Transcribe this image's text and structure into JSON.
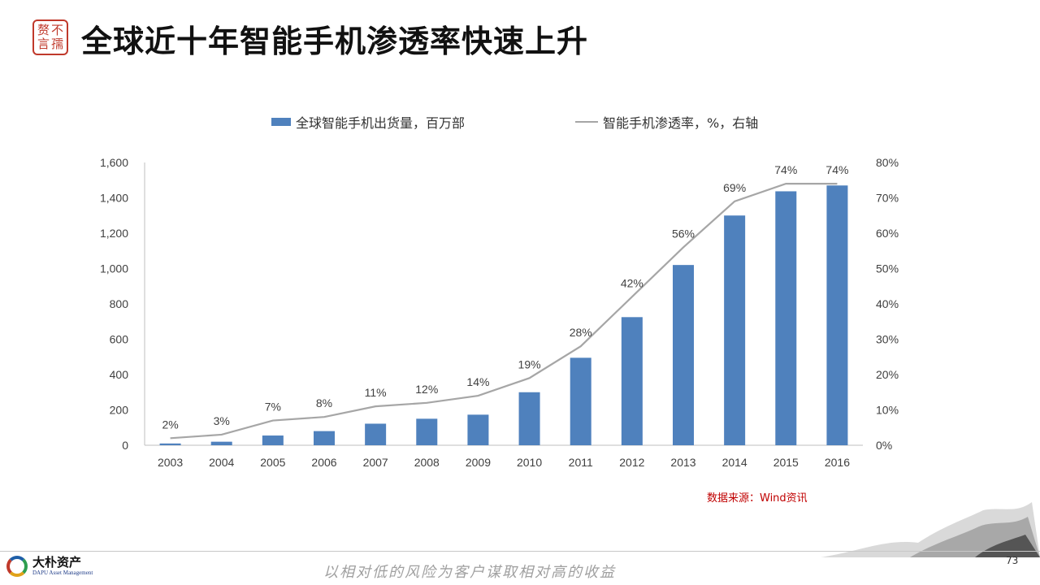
{
  "header": {
    "title": "全球近十年智能手机渗透率快速上升",
    "seal_chars": [
      "赘",
      "不",
      "言",
      "孺"
    ]
  },
  "legend": {
    "bars": "全球智能手机出货量，百万部",
    "line": "智能手机渗透率，%，右轴"
  },
  "source": "数据来源：Wind资讯",
  "footer": {
    "logo_cn": "大朴资产",
    "logo_en": "DAPU Asset Management",
    "slogan": "以相对低的风险为客户谋取相对高的收益",
    "page_number": "73"
  },
  "colors": {
    "bar": "#4f81bd",
    "line": "#a6a6a6",
    "source": "#c00000",
    "seal": "#c0392b"
  },
  "chart_data": {
    "type": "bar",
    "categories": [
      "2003",
      "2004",
      "2005",
      "2006",
      "2007",
      "2008",
      "2009",
      "2010",
      "2011",
      "2012",
      "2013",
      "2014",
      "2015",
      "2016"
    ],
    "series": [
      {
        "name": "全球智能手机出货量，百万部",
        "type": "bar",
        "axis": "left",
        "values": [
          10,
          20,
          55,
          80,
          122,
          150,
          173,
          300,
          495,
          725,
          1020,
          1300,
          1437,
          1470
        ]
      },
      {
        "name": "智能手机渗透率，%，右轴",
        "type": "line",
        "axis": "right",
        "values": [
          2,
          3,
          7,
          8,
          11,
          12,
          14,
          19,
          28,
          42,
          56,
          69,
          74,
          74
        ],
        "labels": [
          "2%",
          "3%",
          "7%",
          "8%",
          "11%",
          "12%",
          "14%",
          "19%",
          "28%",
          "42%",
          "56%",
          "69%",
          "74%",
          "74%"
        ]
      }
    ],
    "y_left": {
      "ylim": [
        0,
        1600
      ],
      "ticks": [
        0,
        200,
        400,
        600,
        800,
        1000,
        1200,
        1400,
        1600
      ],
      "tick_labels": [
        "0",
        "200",
        "400",
        "600",
        "800",
        "1,000",
        "1,200",
        "1,400",
        "1,600"
      ]
    },
    "y_right": {
      "ylim": [
        0,
        80
      ],
      "ticks": [
        0,
        10,
        20,
        30,
        40,
        50,
        60,
        70,
        80
      ],
      "tick_labels": [
        "0%",
        "10%",
        "20%",
        "30%",
        "40%",
        "50%",
        "60%",
        "70%",
        "80%"
      ]
    },
    "grid": false,
    "legend_position": "top"
  }
}
